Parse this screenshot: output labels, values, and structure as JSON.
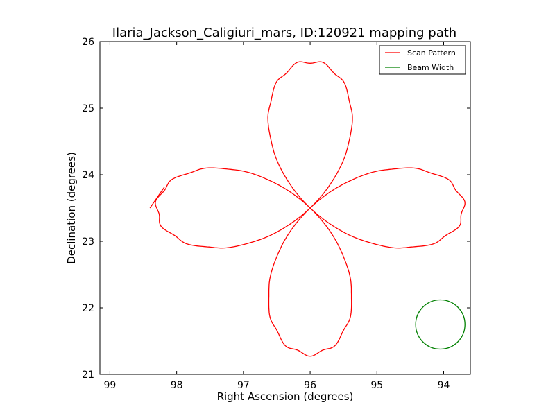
{
  "chart_data": {
    "type": "line",
    "title": "Ilaria_Jackson_Caligiuri_mars, ID:120921 mapping path",
    "xlabel": "Right Ascension (degrees)",
    "ylabel": "Declination (degrees)",
    "xlim": [
      99.15,
      93.6
    ],
    "ylim": [
      21,
      26
    ],
    "x_inverted": true,
    "xticks": [
      "99",
      "98",
      "97",
      "96",
      "95",
      "94"
    ],
    "yticks": [
      "21",
      "22",
      "23",
      "24",
      "25",
      "26"
    ],
    "legend_position": "top-right",
    "series": [
      {
        "name": "Scan Pattern",
        "color": "#ff0000",
        "shape": "four-petal rose (r = R*|cos 2θ|) centered on the source",
        "center": [
          96.0,
          23.5
        ],
        "petal_reach_ra": 2.3,
        "petal_reach_dec": 2.2,
        "start_segment": {
          "x": [
            98.4,
            98.18
          ],
          "y": [
            23.5,
            23.82
          ]
        }
      },
      {
        "name": "Beam Width",
        "color": "#008000",
        "shape": "circle",
        "center": [
          94.05,
          21.75
        ],
        "radius_dec": 0.37
      }
    ]
  },
  "colors": {
    "scan": "#ff0000",
    "beam": "#008000"
  }
}
